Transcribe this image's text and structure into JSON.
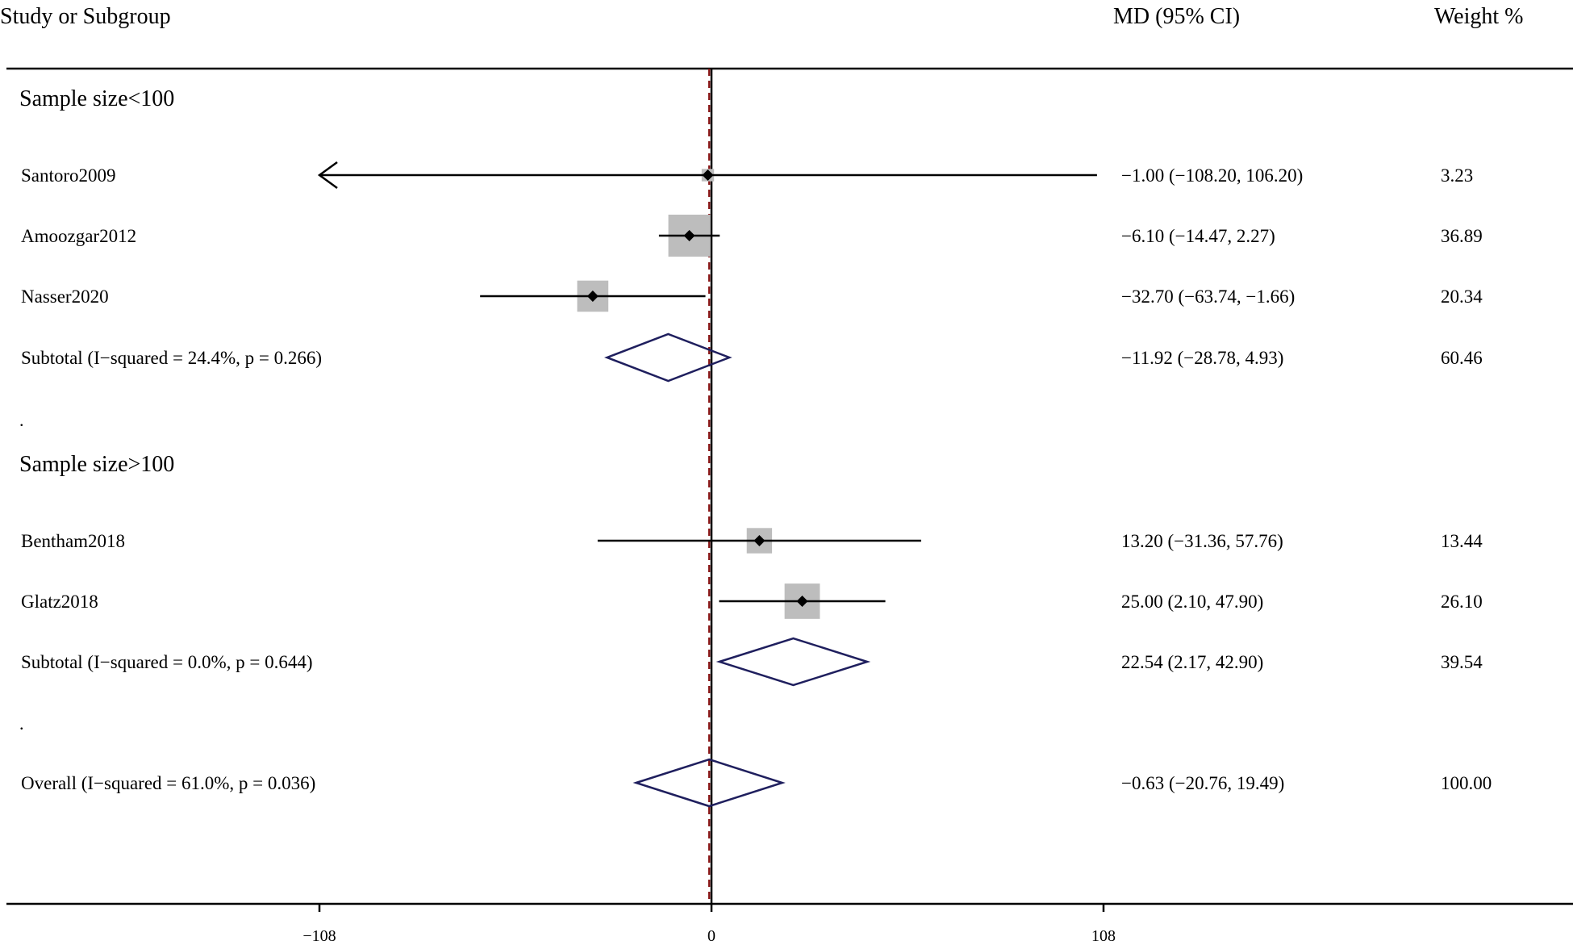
{
  "chart_data": {
    "type": "forest",
    "title": "",
    "header": {
      "study_col": "Study or Subgroup",
      "effect_col": "MD (95% CI)",
      "weight_col": "Weight %"
    },
    "x_axis": {
      "xlim": [
        -108,
        108
      ],
      "ticks": [
        -108,
        0,
        108
      ],
      "tick_labels": [
        "−108",
        "0",
        "108"
      ],
      "null_line": 0
    },
    "rows": [
      {
        "kind": "header",
        "label": "Sample size<100"
      },
      {
        "kind": "study",
        "label": "Santoro2009",
        "md": -1.0,
        "lo": -108.2,
        "hi": 106.2,
        "weight": 3.23,
        "ci_text": "−1.00 (−108.20, 106.20)",
        "weight_text": "3.23"
      },
      {
        "kind": "study",
        "label": "Amoozgar2012",
        "md": -6.1,
        "lo": -14.47,
        "hi": 2.27,
        "weight": 36.89,
        "ci_text": "−6.10 (−14.47, 2.27)",
        "weight_text": "36.89"
      },
      {
        "kind": "study",
        "label": "Nasser2020",
        "md": -32.7,
        "lo": -63.74,
        "hi": -1.66,
        "weight": 20.34,
        "ci_text": "−32.70 (−63.74, −1.66)",
        "weight_text": "20.34"
      },
      {
        "kind": "subtotal",
        "label": "Subtotal  (I−squared = 24.4%, p = 0.266)",
        "md": -11.92,
        "lo": -28.78,
        "hi": 4.93,
        "ci_text": "−11.92 (−28.78, 4.93)",
        "weight_text": "60.46"
      },
      {
        "kind": "spacer",
        "label": "."
      },
      {
        "kind": "header",
        "label": "Sample size>100"
      },
      {
        "kind": "study",
        "label": "Bentham2018",
        "md": 13.2,
        "lo": -31.36,
        "hi": 57.76,
        "weight": 13.44,
        "ci_text": "13.20 (−31.36, 57.76)",
        "weight_text": "13.44"
      },
      {
        "kind": "study",
        "label": "Glatz2018",
        "md": 25.0,
        "lo": 2.1,
        "hi": 47.9,
        "weight": 26.1,
        "ci_text": "25.00 (2.10, 47.90)",
        "weight_text": "26.10"
      },
      {
        "kind": "subtotal",
        "label": "Subtotal  (I−squared = 0.0%, p = 0.644)",
        "md": 22.54,
        "lo": 2.17,
        "hi": 42.9,
        "ci_text": "22.54 (2.17, 42.90)",
        "weight_text": "39.54"
      },
      {
        "kind": "spacer",
        "label": "."
      },
      {
        "kind": "overall",
        "label": "Overall  (I−squared = 61.0%, p = 0.036)",
        "md": -0.63,
        "lo": -20.76,
        "hi": 19.49,
        "ci_text": "−0.63 (−20.76, 19.49)",
        "weight_text": "100.00"
      }
    ],
    "colors": {
      "box": "#bdbdbd",
      "point": "#000000",
      "ci_line": "#000000",
      "diamond": "#1f1f5e",
      "null_line": "#000000",
      "overall_line": "#8b1a1a"
    }
  }
}
